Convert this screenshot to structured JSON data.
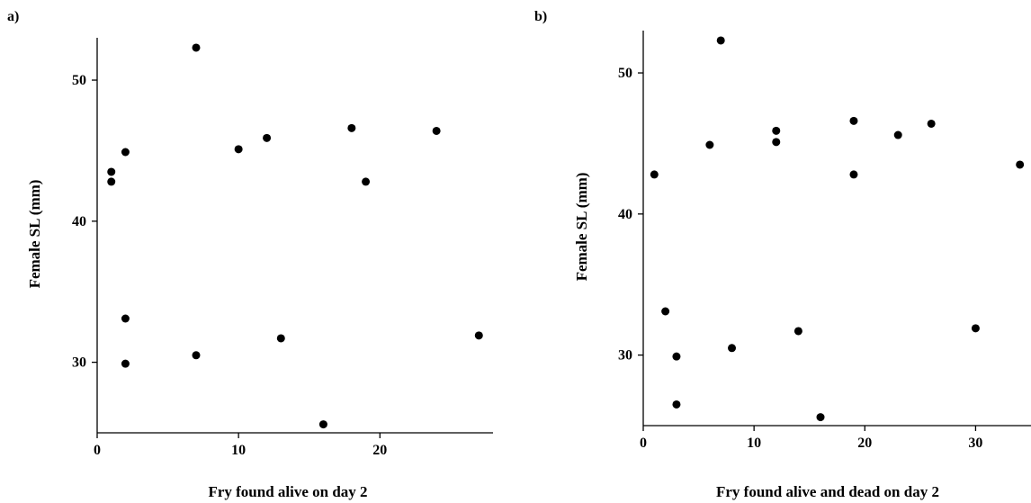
{
  "chart_data": [
    {
      "type": "scatter",
      "panel_label": "a)",
      "xlabel": "Fry found alive on day 2",
      "ylabel": "Female SL (mm)",
      "xlim": [
        0,
        28
      ],
      "ylim": [
        25,
        53
      ],
      "xticks": [
        0,
        10,
        20
      ],
      "yticks": [
        30,
        40,
        50
      ],
      "grid": false,
      "points": [
        {
          "x": 1,
          "y": 43.5
        },
        {
          "x": 1,
          "y": 42.8
        },
        {
          "x": 2,
          "y": 44.9
        },
        {
          "x": 2,
          "y": 33.1
        },
        {
          "x": 2,
          "y": 29.9
        },
        {
          "x": 7,
          "y": 52.3
        },
        {
          "x": 7,
          "y": 30.5
        },
        {
          "x": 10,
          "y": 45.1
        },
        {
          "x": 12,
          "y": 45.9
        },
        {
          "x": 13,
          "y": 31.7
        },
        {
          "x": 16,
          "y": 25.6
        },
        {
          "x": 18,
          "y": 46.6
        },
        {
          "x": 19,
          "y": 42.8
        },
        {
          "x": 24,
          "y": 46.4
        },
        {
          "x": 27,
          "y": 31.9
        }
      ]
    },
    {
      "type": "scatter",
      "panel_label": "b)",
      "xlabel": "Fry found alive and dead on day 2",
      "ylabel": "Female SL (mm)",
      "xlim": [
        0,
        35
      ],
      "ylim": [
        25,
        53
      ],
      "xticks": [
        0,
        10,
        20,
        30
      ],
      "yticks": [
        30,
        40,
        50
      ],
      "grid": false,
      "points": [
        {
          "x": 1,
          "y": 42.8
        },
        {
          "x": 2,
          "y": 33.1
        },
        {
          "x": 3,
          "y": 29.9
        },
        {
          "x": 3,
          "y": 26.5
        },
        {
          "x": 6,
          "y": 44.9
        },
        {
          "x": 7,
          "y": 52.3
        },
        {
          "x": 8,
          "y": 30.5
        },
        {
          "x": 12,
          "y": 45.9
        },
        {
          "x": 12,
          "y": 45.1
        },
        {
          "x": 14,
          "y": 31.7
        },
        {
          "x": 16,
          "y": 25.6
        },
        {
          "x": 19,
          "y": 46.6
        },
        {
          "x": 19,
          "y": 42.8
        },
        {
          "x": 23,
          "y": 45.6
        },
        {
          "x": 26,
          "y": 46.4
        },
        {
          "x": 30,
          "y": 31.9
        },
        {
          "x": 34,
          "y": 43.5
        }
      ]
    }
  ]
}
